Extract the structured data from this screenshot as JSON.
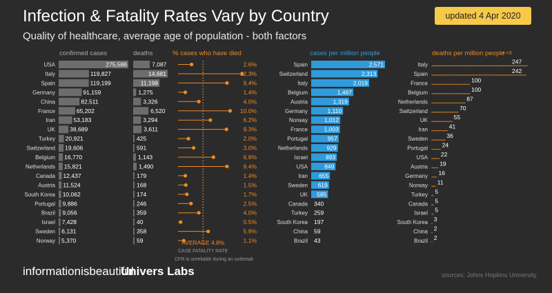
{
  "header": {
    "title": "Infection & Fatality Rates Vary by Country",
    "subtitle": "Quality of healthcare, average age of population - both factors",
    "updated": "updated 4 Apr 2020"
  },
  "footer": {
    "brand_left": "informationisbeautiful",
    "brand_right": "Univers Labs",
    "source": "sources: Johns Hopkins University"
  },
  "colors": {
    "background": "#2b2b2b",
    "grey_bar": "#6d6d6d",
    "orange": "#f08a24",
    "blue": "#2f9bdc",
    "badge": "#f7c948"
  },
  "chart_data": [
    {
      "type": "bar",
      "title": "confirmed cases",
      "categories": [
        "USA",
        "Italy",
        "Spain",
        "Germany",
        "China",
        "France",
        "Iran",
        "UK",
        "Turkey",
        "Switzerland",
        "Belgium",
        "Netherlands",
        "Canada",
        "Austria",
        "South Korea",
        "Portugal",
        "Brazil",
        "Israel",
        "Sweden",
        "Norway"
      ],
      "values": [
        275586,
        119827,
        119199,
        91159,
        82511,
        65202,
        53183,
        38689,
        20921,
        19606,
        16770,
        15821,
        12437,
        11524,
        10062,
        9886,
        9056,
        7428,
        6131,
        5370
      ],
      "labels": [
        "275,586",
        "119,827",
        "119,199",
        "91,159",
        "82,511",
        "65,202",
        "53,183",
        "38,689",
        "20,921",
        "19,606",
        "16,770",
        "15,821",
        "12,437",
        "11,524",
        "10,062",
        "9,886",
        "9,056",
        "7,428",
        "6,131",
        "5,370"
      ]
    },
    {
      "type": "bar",
      "title": "deaths",
      "categories": [
        "USA",
        "Italy",
        "Spain",
        "Germany",
        "China",
        "France",
        "Iran",
        "UK",
        "Turkey",
        "Switzerland",
        "Belgium",
        "Netherlands",
        "Canada",
        "Austria",
        "South Korea",
        "Portugal",
        "Brazil",
        "Israel",
        "Sweden",
        "Norway"
      ],
      "values": [
        7087,
        14681,
        11198,
        1275,
        3326,
        6520,
        3294,
        3611,
        425,
        591,
        1143,
        1490,
        179,
        168,
        174,
        246,
        359,
        40,
        358,
        59
      ],
      "labels": [
        "7,087",
        "14,681",
        "11,198",
        "1,275",
        "3,326",
        "6,520",
        "3,294",
        "3,611",
        "425",
        "591",
        "1,143",
        "1,490",
        "179",
        "168",
        "174",
        "246",
        "359",
        "40",
        "358",
        "59"
      ]
    },
    {
      "type": "scatter",
      "title": "% cases who have died",
      "categories": [
        "USA",
        "Italy",
        "Spain",
        "Germany",
        "China",
        "France",
        "Iran",
        "UK",
        "Turkey",
        "Switzerland",
        "Belgium",
        "Netherlands",
        "Canada",
        "Austria",
        "South Korea",
        "Portugal",
        "Brazil",
        "Israel",
        "Sweden",
        "Norway"
      ],
      "values": [
        2.6,
        12.3,
        9.4,
        1.4,
        4.0,
        10.0,
        6.2,
        9.3,
        2.0,
        3.0,
        6.8,
        9.4,
        1.4,
        1.5,
        1.7,
        2.5,
        4.0,
        0.5,
        5.8,
        1.1
      ],
      "labels": [
        "2.6%",
        "12.3%",
        "9.4%",
        "1.4%",
        "4.0%",
        "10.0%",
        "6.2%",
        "9.3%",
        "2.0%",
        "3.0%",
        "6.8%",
        "9.4%",
        "1.4%",
        "1.5%",
        "1.7%",
        "2.5%",
        "4.0%",
        "0.5%",
        "5.8%",
        "1.1%"
      ],
      "average_value": 4.8,
      "average_label": "AVERAGE 4.8%",
      "average_caption": "CASE FATALITY RATE",
      "note": "CFR is unreliable during an outbreak"
    },
    {
      "type": "bar",
      "title": "cases per million people",
      "categories": [
        "Spain",
        "Switzerland",
        "Italy",
        "Belgium",
        "Austria",
        "Germany",
        "Norway",
        "France",
        "Portugal",
        "Netherlands",
        "Israel",
        "USA",
        "Iran",
        "Sweden",
        "UK",
        "Canada",
        "Turkey",
        "South Korea",
        "China",
        "Brazil"
      ],
      "values": [
        2571,
        2313,
        2019,
        1467,
        1319,
        1110,
        1012,
        1003,
        957,
        929,
        893,
        849,
        655,
        619,
        585,
        340,
        259,
        197,
        59,
        43
      ],
      "labels": [
        "2,571",
        "2,313",
        "2,019",
        "1,467",
        "1,319",
        "1,110",
        "1,012",
        "1,003",
        "957",
        "929",
        "893",
        "849",
        "655",
        "619",
        "585",
        "340",
        "259",
        "197",
        "59",
        "43"
      ],
      "highlight_count": 15
    },
    {
      "type": "bar",
      "title": "deaths per million people",
      "legend_label": "=3",
      "categories": [
        "Italy",
        "Spain",
        "France",
        "Belgium",
        "Netherlands",
        "Switzerland",
        "UK",
        "Iran",
        "Sweden",
        "Portugal",
        "USA",
        "Austria",
        "Germany",
        "Norway",
        "Turkey",
        "Canada",
        "Israel",
        "South Korea",
        "China",
        "Brazil"
      ],
      "values": [
        247,
        242,
        100,
        100,
        87,
        70,
        55,
        41,
        36,
        24,
        22,
        19,
        16,
        11,
        5,
        5,
        5,
        3,
        2,
        2
      ],
      "labels": [
        "247",
        "242",
        "100",
        "100",
        "87",
        "70",
        "55",
        "41",
        "36",
        "24",
        "22",
        "19",
        "16",
        "11",
        "5",
        "5",
        "5",
        "3",
        "2",
        "2"
      ]
    }
  ]
}
